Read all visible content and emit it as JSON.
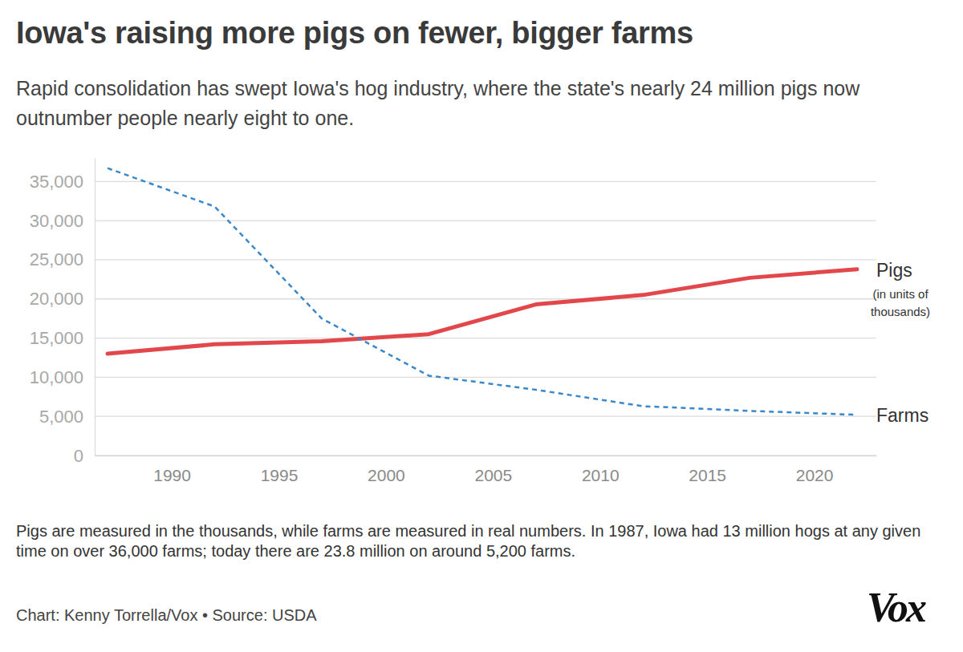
{
  "chart_data": {
    "type": "line",
    "title": "Iowa's raising more pigs on fewer, bigger farms",
    "subtitle": "Rapid consolidation has swept Iowa's hog industry, where the state's nearly 24 million pigs now outnumber people nearly eight to one.",
    "x": [
      1987,
      1992,
      1997,
      2002,
      2007,
      2012,
      2017,
      2022
    ],
    "series": [
      {
        "name": "Pigs",
        "color": "#e2474b",
        "line_style": "solid",
        "note_lines": [
          "(in units of",
          "thousands)"
        ],
        "values": [
          13000,
          14200,
          14600,
          15500,
          19300,
          20500,
          22700,
          23800
        ]
      },
      {
        "name": "Farms",
        "color": "#3a88c9",
        "line_style": "dashed",
        "values": [
          36700,
          31800,
          17500,
          10200,
          8400,
          6300,
          5700,
          5200
        ]
      }
    ],
    "xlim": [
      1986.4,
      2022.9
    ],
    "xticks": [
      1990,
      1995,
      2000,
      2005,
      2010,
      2015,
      2020
    ],
    "ylim": [
      0,
      38000
    ],
    "yticks": [
      0,
      {
        "value": 5000,
        "label": "5,000"
      },
      {
        "value": 10000,
        "label": "10,000"
      },
      {
        "value": 15000,
        "label": "15,000"
      },
      {
        "value": 20000,
        "label": "20,000"
      },
      {
        "value": 25000,
        "label": "25,000"
      },
      {
        "value": 30000,
        "label": "30,000"
      },
      {
        "value": 35000,
        "label": "35,000"
      }
    ],
    "grid": true,
    "caption": "Pigs are measured in the thousands, while farms are measured in real numbers. In 1987, Iowa had 13 million hogs at any given time on over 36,000 farms; today there are 23.8 million on around 5,200 farms.",
    "credit": "Chart: Kenny Torrella/Vox • Source: USDA",
    "logo": "Vox"
  }
}
